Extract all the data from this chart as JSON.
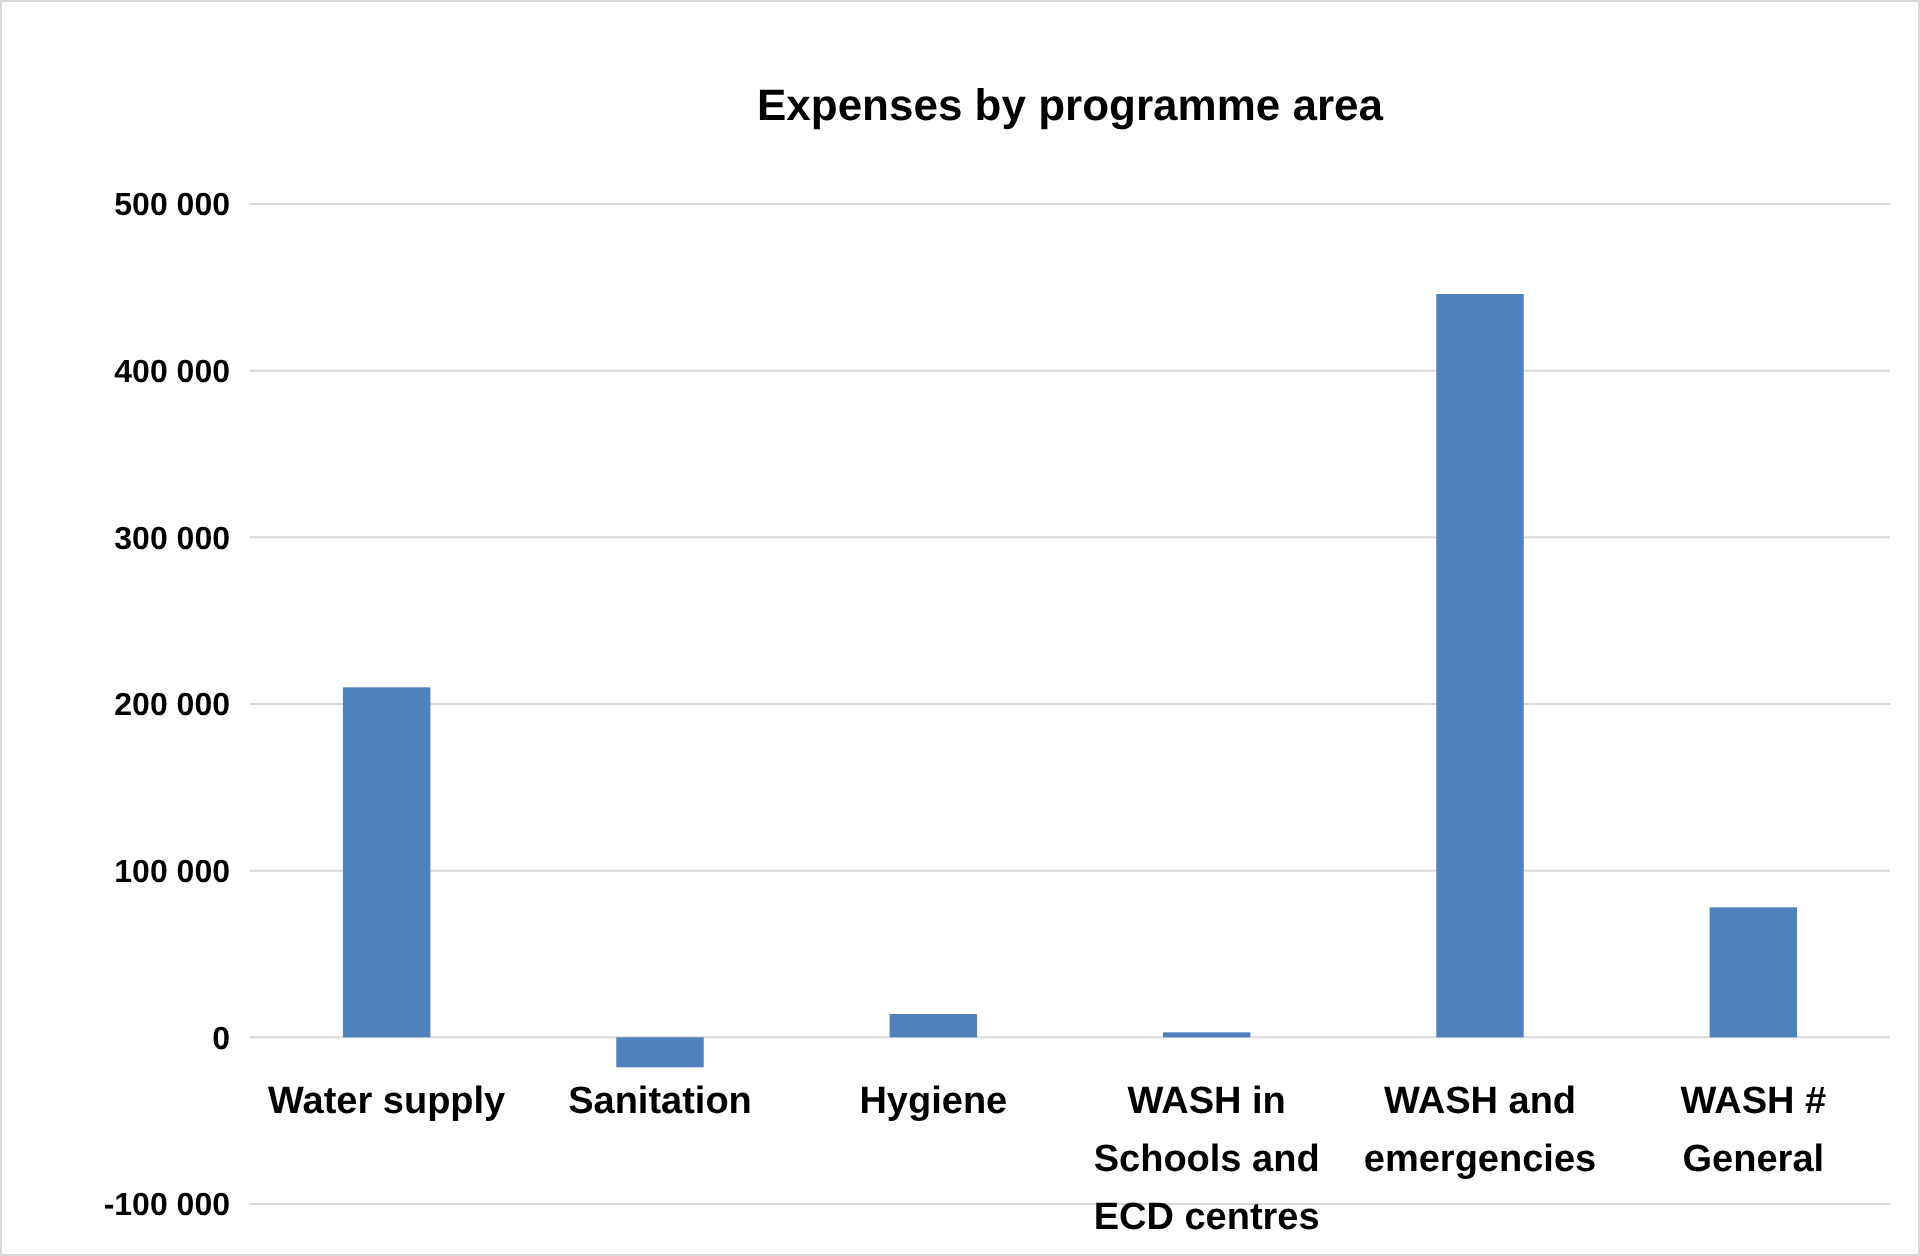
{
  "chart_data": {
    "type": "bar",
    "title": "Expenses by programme area",
    "categories": [
      "Water supply",
      "Sanitation",
      "Hygiene",
      "WASH in Schools and ECD centres",
      "WASH and emergencies",
      "WASH # General"
    ],
    "values": [
      210000,
      -18000,
      14000,
      3000,
      446000,
      78000
    ],
    "color": "#4f81bd",
    "ylim": [
      -100000,
      500000
    ],
    "yticks": [
      {
        "value": -100000,
        "label": "-100 000"
      },
      {
        "value": 0,
        "label": "0"
      },
      {
        "value": 100000,
        "label": "100 000"
      },
      {
        "value": 200000,
        "label": "200 000"
      },
      {
        "value": 300000,
        "label": "300 000"
      },
      {
        "value": 400000,
        "label": "400 000"
      },
      {
        "value": 500000,
        "label": "500 000"
      }
    ],
    "grid": "y"
  }
}
